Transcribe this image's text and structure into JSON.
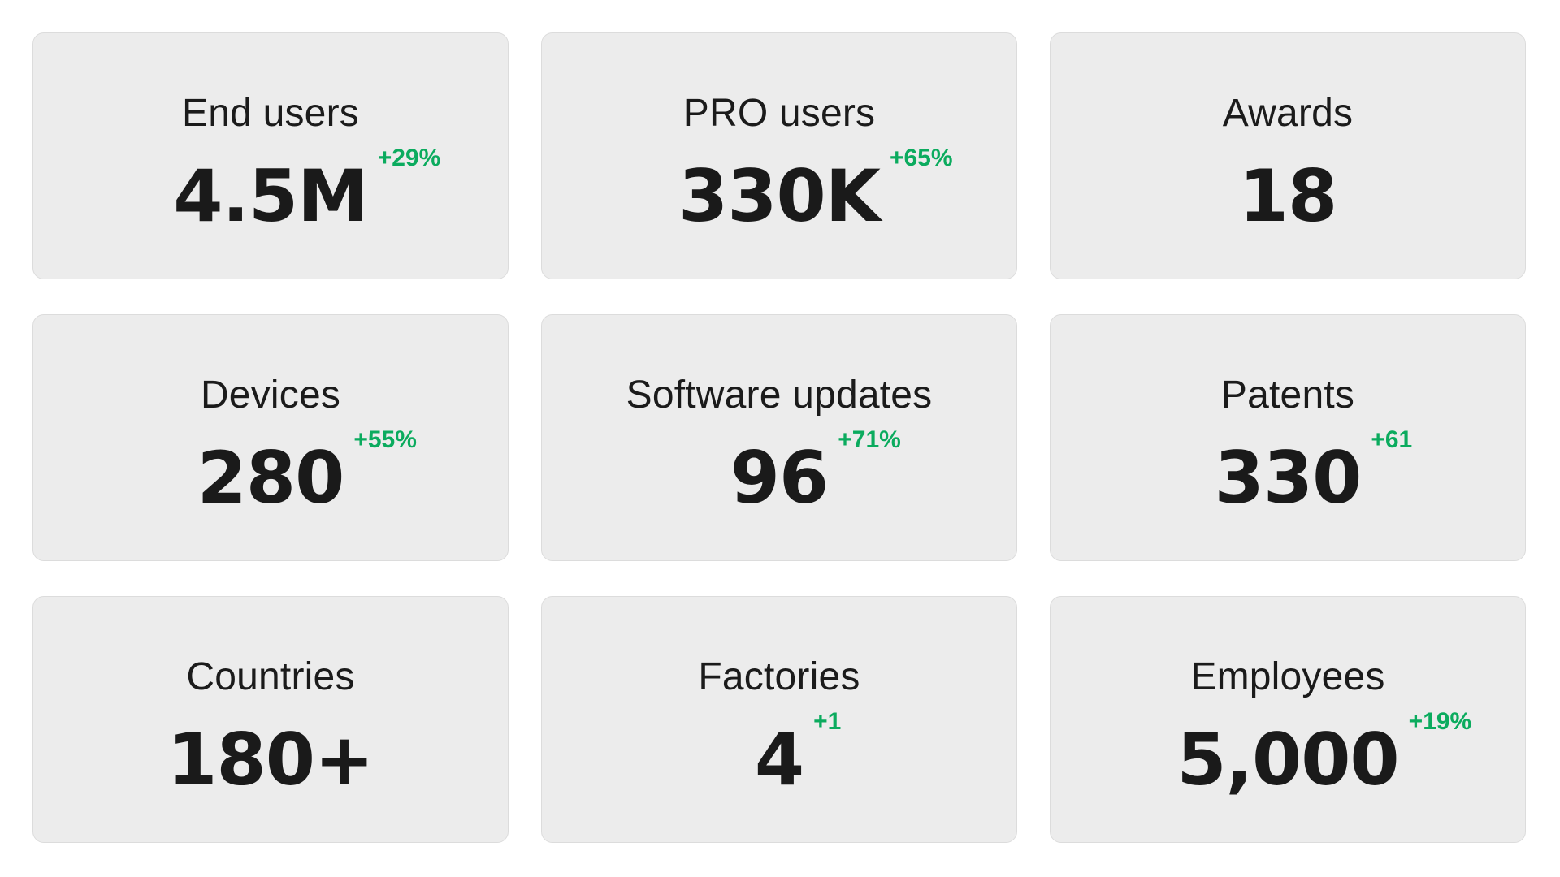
{
  "theme": {
    "page_bg": "#ffffff",
    "card_bg": "#ececec",
    "card_border": "#dcdcdc",
    "label_color": "#1b1b1b",
    "value_color": "#1a1a1a",
    "delta_color": "#0bab5e"
  },
  "stats": {
    "cards": [
      {
        "label": "End users",
        "value": "4.5M",
        "delta": "+29%"
      },
      {
        "label": "PRO users",
        "value": "330K",
        "delta": "+65%"
      },
      {
        "label": "Awards",
        "value": "18"
      },
      {
        "label": "Devices",
        "value": "280",
        "delta": "+55%"
      },
      {
        "label": "Software updates",
        "value": "96",
        "delta": "+71%"
      },
      {
        "label": "Patents",
        "value": "330",
        "delta": "+61"
      },
      {
        "label": "Countries",
        "value": "180+"
      },
      {
        "label": "Factories",
        "value": "4",
        "delta": "+1"
      },
      {
        "label": "Employees",
        "value": "5,000",
        "delta": "+19%"
      }
    ]
  }
}
